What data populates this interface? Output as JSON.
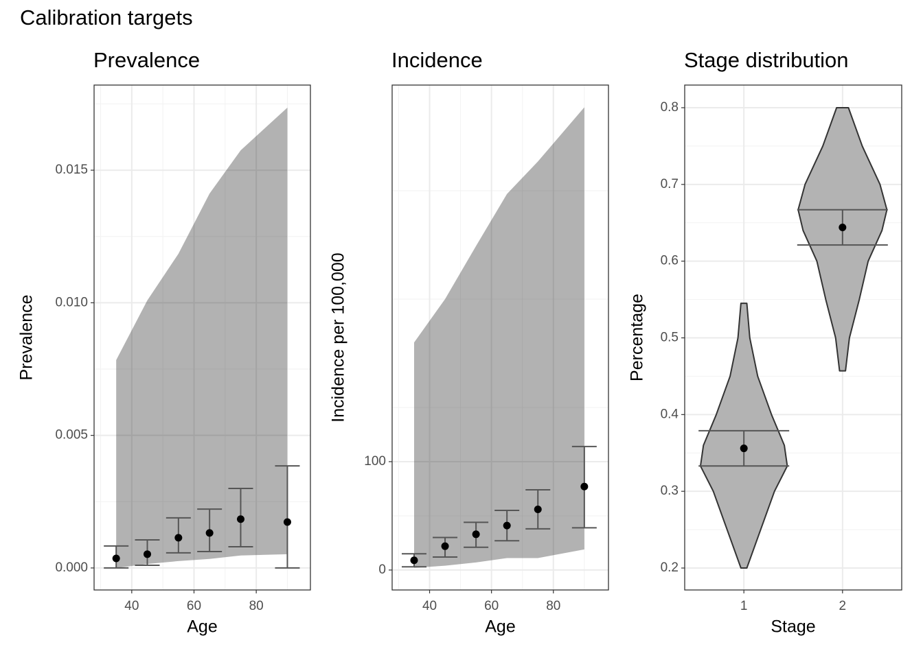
{
  "title": "Calibration targets",
  "chart_data": [
    {
      "type": "errorbar",
      "title": "Prevalence",
      "x_label": "Age",
      "y_label": "Prevalence",
      "x": [
        35,
        45,
        55,
        65,
        75,
        90
      ],
      "ribbon_lower": [
        0.0,
        0.00015,
        0.00026,
        0.00034,
        0.00047,
        0.00052
      ],
      "ribbon_upper": [
        0.00784,
        0.01009,
        0.01185,
        0.01412,
        0.01575,
        0.01736
      ],
      "values": [
        0.00036,
        0.00052,
        0.00114,
        0.00132,
        0.00184,
        0.00173
      ],
      "lower": [
        0.0,
        0.0001,
        0.00057,
        0.00062,
        0.0008,
        0.0
      ],
      "upper": [
        0.00083,
        0.00106,
        0.00189,
        0.00222,
        0.003,
        0.00385
      ],
      "xlim": [
        27.9,
        97.4
      ],
      "ylim": [
        -0.00083,
        0.01821
      ],
      "xticks": [
        40,
        60,
        80
      ],
      "yticks": [
        {
          "value": 0,
          "label": "0.000"
        },
        {
          "value": 0.005,
          "label": "0.005"
        },
        {
          "value": 0.01,
          "label": "0.010"
        },
        {
          "value": 0.015,
          "label": "0.015"
        }
      ],
      "ribbon_color": "#000000",
      "ribbon_alpha": 0.3,
      "color": "#000000",
      "error_color": "#555555",
      "grid": true
    },
    {
      "type": "errorbar",
      "title": "Incidence",
      "x_label": "Age",
      "y_label": "Incidence per 100,000",
      "x": [
        35,
        45,
        55,
        65,
        75,
        90
      ],
      "ribbon_lower": [
        2,
        4,
        7,
        11,
        11,
        19
      ],
      "ribbon_upper": [
        210,
        250,
        299,
        347,
        377,
        427
      ],
      "values": [
        9,
        22,
        33,
        41,
        56,
        77
      ],
      "lower": [
        3,
        12,
        21,
        27,
        38,
        39
      ],
      "upper": [
        15,
        30,
        44,
        55,
        74,
        114
      ],
      "xlim": [
        27.9,
        97.8
      ],
      "ylim": [
        -18.4,
        447.5
      ],
      "xticks": [
        40,
        60,
        80
      ],
      "yticks": [
        0,
        100
      ],
      "ribbon_color": "#000000",
      "ribbon_alpha": 0.3,
      "color": "#000000",
      "error_color": "#555555",
      "grid": true
    },
    {
      "type": "violin",
      "title": "Stage distribution",
      "x_label": "Stage",
      "y_label": "Percentage",
      "categories": [
        "1",
        "2"
      ],
      "violins": [
        {
          "y": [
            0.2,
            0.25,
            0.3,
            0.333,
            0.36,
            0.4,
            0.45,
            0.5,
            0.545
          ],
          "width": [
            0.03,
            0.17,
            0.31,
            0.44,
            0.41,
            0.28,
            0.14,
            0.06,
            0.03
          ]
        },
        {
          "y": [
            0.457,
            0.5,
            0.55,
            0.6,
            0.64,
            0.667,
            0.7,
            0.75,
            0.8
          ],
          "width": [
            0.03,
            0.07,
            0.17,
            0.26,
            0.4,
            0.45,
            0.38,
            0.2,
            0.06
          ]
        }
      ],
      "values": [
        0.356,
        0.644
      ],
      "lower": [
        0.333,
        0.621
      ],
      "upper": [
        0.379,
        0.667
      ],
      "ylim": [
        0.1714,
        0.8295
      ],
      "yticks": [
        0.2,
        0.3,
        0.4,
        0.5,
        0.6,
        0.7,
        0.8
      ],
      "violin_color": "#b3b3b3",
      "color": "#000000",
      "error_color": "#555555",
      "grid": true
    }
  ]
}
